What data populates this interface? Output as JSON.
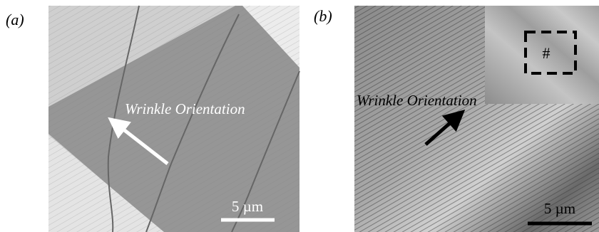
{
  "panels": [
    {
      "label": "(a)",
      "annotation": "Wrinkle Orientation",
      "scale_bar": "5 µm"
    },
    {
      "label": "(b)",
      "annotation": "Wrinkle Orientation",
      "scale_bar": "5 µm",
      "inset_mark": "#"
    }
  ]
}
